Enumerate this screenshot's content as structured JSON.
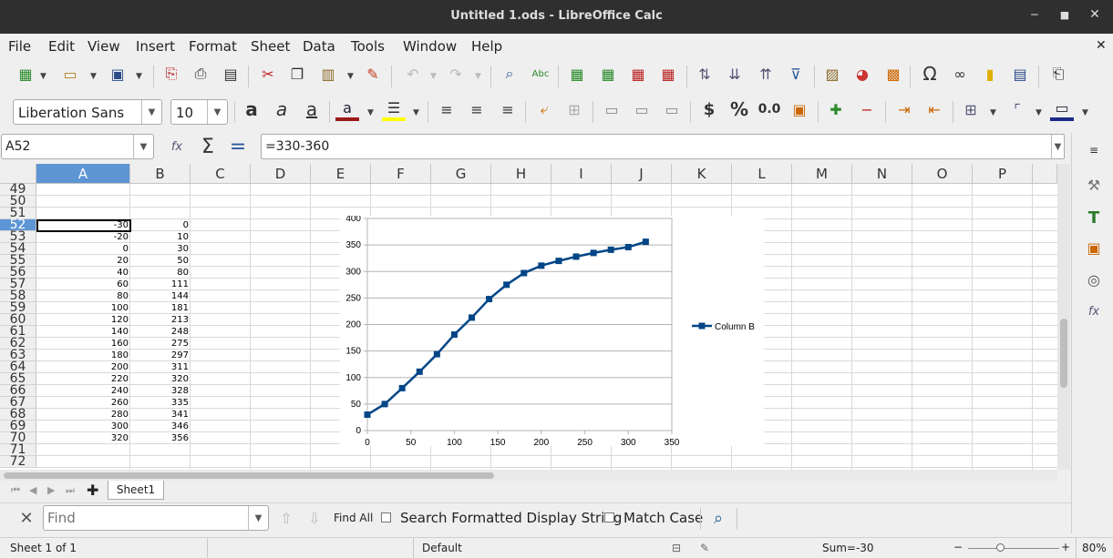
{
  "window": {
    "title": "Untitled 1.ods - LibreOffice Calc",
    "minimize": "‒",
    "maximize": "■",
    "close": "✕",
    "doc_close": "✕"
  },
  "menu": [
    "File",
    "Edit",
    "View",
    "Insert",
    "Format",
    "Sheet",
    "Data",
    "Tools",
    "Window",
    "Help"
  ],
  "format_bar": {
    "font_name": "Liberation Sans",
    "font_size": "10"
  },
  "formula_bar": {
    "cell_ref": "A52",
    "formula": "=330-360"
  },
  "columns": [
    "A",
    "B",
    "C",
    "D",
    "E",
    "F",
    "G",
    "H",
    "I",
    "J",
    "K",
    "L",
    "M",
    "N",
    "O",
    "P"
  ],
  "rows": [
    "49",
    "50",
    "51",
    "52",
    "53",
    "54",
    "55",
    "56",
    "57",
    "58",
    "59",
    "60",
    "61",
    "62",
    "63",
    "64",
    "65",
    "66",
    "67",
    "68",
    "69",
    "70",
    "71",
    "72"
  ],
  "col_a": [
    "-30",
    "-20",
    "0",
    "20",
    "40",
    "60",
    "80",
    "100",
    "120",
    "140",
    "160",
    "180",
    "200",
    "220",
    "240",
    "260",
    "280",
    "300",
    "320"
  ],
  "col_b": [
    "0",
    "10",
    "30",
    "50",
    "80",
    "111",
    "144",
    "181",
    "213",
    "248",
    "275",
    "297",
    "311",
    "320",
    "328",
    "335",
    "341",
    "346",
    "356"
  ],
  "chart_data": {
    "type": "line",
    "x": [
      0,
      20,
      40,
      60,
      80,
      100,
      120,
      140,
      160,
      180,
      200,
      220,
      240,
      260,
      280,
      300,
      320
    ],
    "series": [
      {
        "name": "Column B",
        "values": [
          30,
          50,
          80,
          111,
          144,
          181,
          213,
          248,
          275,
          297,
          311,
          320,
          328,
          335,
          341,
          346,
          356
        ]
      }
    ],
    "xlim": [
      0,
      350
    ],
    "ylim": [
      0,
      400
    ],
    "xticks": [
      "0",
      "50",
      "100",
      "150",
      "200",
      "250",
      "300",
      "350"
    ],
    "yticks": [
      "0",
      "50",
      "100",
      "150",
      "200",
      "250",
      "300",
      "350",
      "400"
    ],
    "grid": true,
    "legend": "right",
    "color": "#004586"
  },
  "sheet_tab": "Sheet1",
  "find": {
    "placeholder": "Find",
    "find_all": "Find All",
    "search_formatted": "Search Formatted Display String",
    "match_case": "Match Case"
  },
  "status": {
    "sheet": "Sheet 1 of 1",
    "style": "Default",
    "sum": "Sum=-30",
    "zoom": "80%"
  }
}
